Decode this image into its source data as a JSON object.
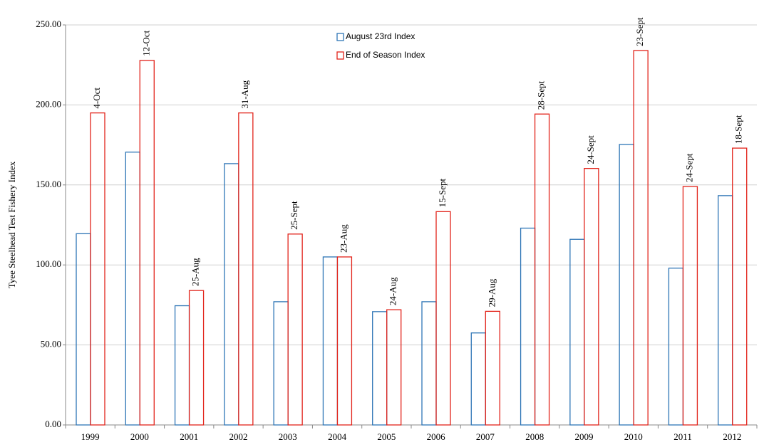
{
  "chart_data": {
    "type": "bar",
    "y_label": "Tyee Steelhead Test Fishery Index",
    "categories": [
      "1999",
      "2000",
      "2001",
      "2002",
      "2003",
      "2004",
      "2005",
      "2006",
      "2007",
      "2008",
      "2009",
      "2010",
      "2011",
      "2012"
    ],
    "series": [
      {
        "name": "August 23rd Index",
        "color": "#2e75b6",
        "values": [
          119.5,
          170.5,
          74.5,
          163.3,
          77,
          105,
          70.8,
          77,
          57.5,
          123,
          116,
          175.3,
          98,
          143.3
        ]
      },
      {
        "name": "End of Season Index",
        "color": "#e2231a",
        "values": [
          195,
          227.8,
          84,
          195,
          119.3,
          105,
          72,
          133.3,
          71,
          194.3,
          160.3,
          234,
          149,
          173
        ]
      }
    ],
    "annotations": [
      "4-Oct",
      "12-Oct",
      "25-Aug",
      "31-Aug",
      "25-Sept",
      "23-Aug",
      "24-Aug",
      "15-Sept",
      "29-Aug",
      "28-Sept",
      "24-Sept",
      "23-Sept",
      "24-Sept",
      "18-Sept"
    ],
    "ylim": [
      0,
      250
    ],
    "yticks": [
      {
        "value": 0,
        "label": "0.00"
      },
      {
        "value": 50,
        "label": "50.00"
      },
      {
        "value": 100,
        "label": "100.00"
      },
      {
        "value": 150,
        "label": "150.00"
      },
      {
        "value": 200,
        "label": "200.00"
      },
      {
        "value": 250,
        "label": "250.00"
      }
    ],
    "grid": true
  }
}
